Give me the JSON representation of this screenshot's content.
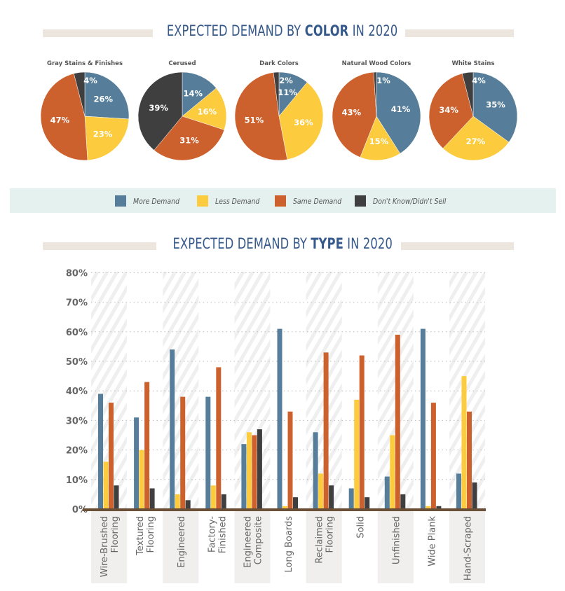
{
  "colors": {
    "more": "#567e9a",
    "less": "#fccc3e",
    "same": "#cc612e",
    "dontknow": "#3f3f40",
    "title": "#35598a",
    "title_bar": "#ede6df",
    "legend_bg": "#e5f1ee",
    "axis": "#6b4f36",
    "tick_text": "#666666",
    "stripe_band": "#f1f1f1",
    "label_band": "#f0efee"
  },
  "color_section": {
    "title_pre": "EXPECTED DEMAND BY ",
    "title_bold": "COLOR",
    "title_post": " IN 2020"
  },
  "type_section": {
    "title_pre": "EXPECTED DEMAND BY ",
    "title_bold": "TYPE",
    "title_post": " IN 2020"
  },
  "legend": [
    {
      "label": "More Demand",
      "key": "more"
    },
    {
      "label": "Less Demand",
      "key": "less"
    },
    {
      "label": "Same Demand",
      "key": "same"
    },
    {
      "label": "Don't Know/Didn't Sell",
      "key": "dontknow"
    }
  ],
  "chart_data": [
    {
      "type": "pie",
      "title": "Expected Demand by Color in 2020",
      "series_names": [
        "More Demand",
        "Less Demand",
        "Same Demand",
        "Don't Know/Didn't Sell"
      ],
      "pies": [
        {
          "name": "Gray Stains & Finishes",
          "values": [
            26,
            23,
            47,
            4
          ],
          "labels": [
            "26%",
            "23%",
            "47%",
            "4%"
          ]
        },
        {
          "name": "Cerused",
          "values": [
            14,
            16,
            31,
            39
          ],
          "labels": [
            "14%",
            "16%",
            "31%",
            "39%"
          ]
        },
        {
          "name": "Dark Colors",
          "values": [
            11,
            36,
            51,
            2
          ],
          "labels": [
            "11%",
            "36%",
            "51%",
            "2%"
          ]
        },
        {
          "name": "Natural Wood Colors",
          "values": [
            41,
            15,
            43,
            1
          ],
          "labels": [
            "41%",
            "15%",
            "43%",
            "1%"
          ]
        },
        {
          "name": "White Stains",
          "values": [
            35,
            27,
            34,
            4
          ],
          "labels": [
            "35%",
            "27%",
            "34%",
            "4%"
          ]
        }
      ]
    },
    {
      "type": "bar",
      "title": "Expected Demand by Type in 2020",
      "xlabel": "",
      "ylabel": "",
      "ylim": [
        0,
        80
      ],
      "yticks": [
        0,
        10,
        20,
        30,
        40,
        50,
        60,
        70,
        80
      ],
      "ytick_labels": [
        "0%",
        "10%",
        "20%",
        "30%",
        "40%",
        "50%",
        "60%",
        "70%",
        "80%"
      ],
      "grid": true,
      "categories": [
        [
          "Wire-Brushed",
          "Flooring"
        ],
        [
          "Textured",
          "Flooring"
        ],
        [
          "Engineered"
        ],
        [
          "Factory-",
          "Finished"
        ],
        [
          "Engineered",
          "Composite"
        ],
        [
          "Long Boards"
        ],
        [
          "Reclaimed",
          "Flooring"
        ],
        [
          "Solid"
        ],
        [
          "Unfinished"
        ],
        [
          "Wide Plank"
        ],
        [
          "Hand-Scraped"
        ]
      ],
      "series": [
        {
          "name": "More Demand",
          "key": "more",
          "values": [
            39,
            31,
            54,
            38,
            22,
            61,
            26,
            7,
            11,
            61,
            12
          ]
        },
        {
          "name": "Less Demand",
          "key": "less",
          "values": [
            16,
            20,
            5,
            8,
            26,
            1,
            12,
            37,
            25,
            1,
            45
          ]
        },
        {
          "name": "Same Demand",
          "key": "same",
          "values": [
            36,
            43,
            38,
            48,
            25,
            33,
            53,
            52,
            59,
            36,
            33
          ]
        },
        {
          "name": "Don't Know/Didn't Sell",
          "key": "dontknow",
          "values": [
            8,
            7,
            3,
            5,
            27,
            4,
            8,
            4,
            5,
            1,
            9
          ]
        }
      ]
    }
  ]
}
